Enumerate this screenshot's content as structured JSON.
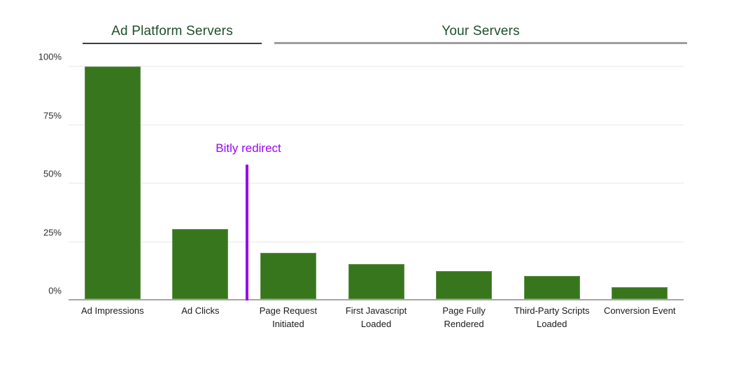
{
  "colors": {
    "bar_green": "#38761d",
    "header_green": "#1e4f2d",
    "annotation_purple": "#9908f0",
    "gridline": "#e8e8e8",
    "axis_line": "#a5a5a5",
    "underline_dark": "#3d3d3d",
    "underline_gray": "#9e9e9e",
    "tick_text": "#2e2e2e",
    "category_text": "#1a1a1a"
  },
  "header": {
    "group1_label": "Ad Platform Servers",
    "group2_label": "Your Servers"
  },
  "annotation": {
    "label": "Bitly redirect",
    "height_pct": 58,
    "between": [
      "Ad Clicks",
      "Page Request Initiated"
    ]
  },
  "chart_data": {
    "type": "bar",
    "title": "",
    "xlabel": "",
    "ylabel": "",
    "unit": "%",
    "ylim": [
      0,
      100
    ],
    "grid": true,
    "legend": "none",
    "categories": [
      "Ad Impressions",
      "Ad Clicks",
      "Page Request Initiated",
      "First Javascript Loaded",
      "Page Fully Rendered",
      "Third-Party Scripts Loaded",
      "Conversion Event"
    ],
    "values": [
      100,
      30,
      20,
      15,
      12,
      10,
      5
    ],
    "yticks": [
      {
        "label": "0%",
        "value": 0
      },
      {
        "label": "25%",
        "value": 25
      },
      {
        "label": "50%",
        "value": 50
      },
      {
        "label": "75%",
        "value": 75
      },
      {
        "label": "100%",
        "value": 100
      }
    ],
    "groups": [
      {
        "label": "Ad Platform Servers",
        "categories": [
          "Ad Impressions",
          "Ad Clicks"
        ]
      },
      {
        "label": "Your Servers",
        "categories": [
          "Page Request Initiated",
          "First Javascript Loaded",
          "Page Fully Rendered",
          "Third-Party Scripts Loaded",
          "Conversion Event"
        ]
      }
    ]
  }
}
